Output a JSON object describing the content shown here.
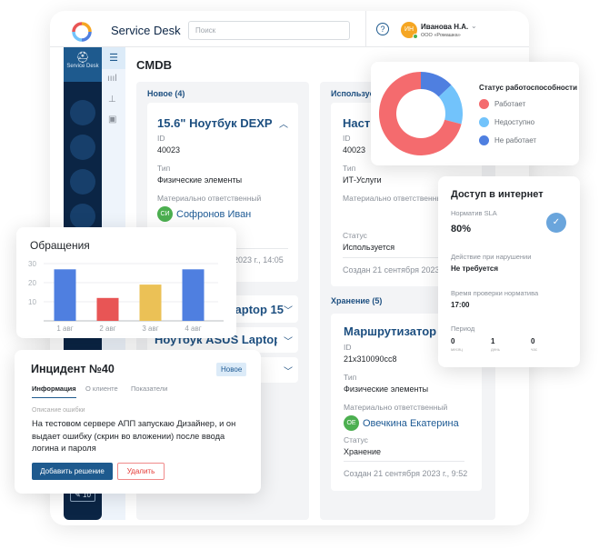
{
  "header": {
    "app_title": "Service Desk",
    "search_placeholder": "Поиск",
    "user_initials": "ИН",
    "user_name": "Иванова Н.А.",
    "user_org": "ООО «Ромашка»"
  },
  "sidebar": {
    "active_label": "Service Desk",
    "bottom_badge": "10"
  },
  "page_title": "CMDB",
  "columns": [
    {
      "header": "Новое (4)",
      "card": {
        "title": "15.6\" Ноутбук DEXP",
        "id_label": "ID",
        "id": "40023",
        "type_label": "Тип",
        "type": "Физические элементы",
        "owner_label": "Материально ответственный",
        "owner_initials": "СИ",
        "owner": "Софронов Иван",
        "created": "2023 г., 14:05"
      },
      "collapsed": [
        "Laptop 15",
        "Ноутбук ASUS Laptop 15",
        ""
      ]
    },
    {
      "header": "Используется",
      "card": {
        "title": "Настр",
        "id_label": "ID",
        "id": "40023",
        "type_label": "Тип",
        "type": "ИТ-Услуги",
        "owner_label": "Материально ответственный",
        "status_label": "Статус",
        "status": "Используется",
        "created": "Создан 21 сентября 2023"
      }
    },
    {
      "header": "Хранение (5)",
      "card": {
        "title": "Маршрутизатор TP",
        "id_label": "ID",
        "id": "21x310090cc8",
        "type_label": "Тип",
        "type": "Физические элементы",
        "owner_label": "Материально ответственный",
        "owner_initials": "ОЕ",
        "owner": "Овечкина Екатерина",
        "status_label": "Статус",
        "status": "Хранение",
        "created": "Создан 21 сентября 2023 г., 9:52"
      }
    }
  ],
  "status_card": {
    "title": "Статус работоспособности",
    "legend": [
      {
        "label": "Работает",
        "color": "#f46b6e"
      },
      {
        "label": "Недоступно",
        "color": "#72c3fb"
      },
      {
        "label": "Не работает",
        "color": "#4f7fe0"
      }
    ]
  },
  "sla_card": {
    "title": "Доступ в интернет",
    "sla_label": "Норматив SLA",
    "sla_value": "80%",
    "action_label": "Действие при нарушении",
    "action_value": "Не требуется",
    "time_label": "Время проверки норматива",
    "time_value": "17:00",
    "period_label": "Период",
    "period": [
      {
        "v": "0",
        "u": "месяц"
      },
      {
        "v": "1",
        "u": "день"
      },
      {
        "v": "0",
        "u": "час"
      }
    ]
  },
  "chart_data": [
    {
      "type": "pie",
      "title": "Статус работоспособности",
      "labels": [
        "Работает",
        "Недоступно",
        "Не работает"
      ],
      "values": [
        71,
        16,
        13
      ],
      "colors": [
        "#f46b6e",
        "#72c3fb",
        "#4f7fe0"
      ],
      "donut": true,
      "legend": "right"
    },
    {
      "type": "bar",
      "title": "Обращения",
      "categories": [
        "1 авг",
        "2 авг",
        "3 авг",
        "4 авг"
      ],
      "values": [
        27,
        12,
        19,
        27
      ],
      "colors": [
        "#4f7fe0",
        "#e85555",
        "#ebc156",
        "#4f7fe0"
      ],
      "yticks": [
        "10",
        "20",
        "30"
      ],
      "ylim": [
        0,
        30
      ],
      "grid": true
    }
  ],
  "incident": {
    "title": "Инцидент №40",
    "badge": "Новое",
    "tabs": [
      "Информация",
      "О клиенте",
      "Показатели"
    ],
    "desc_label": "Описание ошибки",
    "desc": "На тестовом сервере АПП запускаю Дизайнер, и он выдает ошибку (скрин во вложении) после ввода логина и пароля",
    "primary_btn": "Добавить решение",
    "delete_btn": "Удалить"
  }
}
